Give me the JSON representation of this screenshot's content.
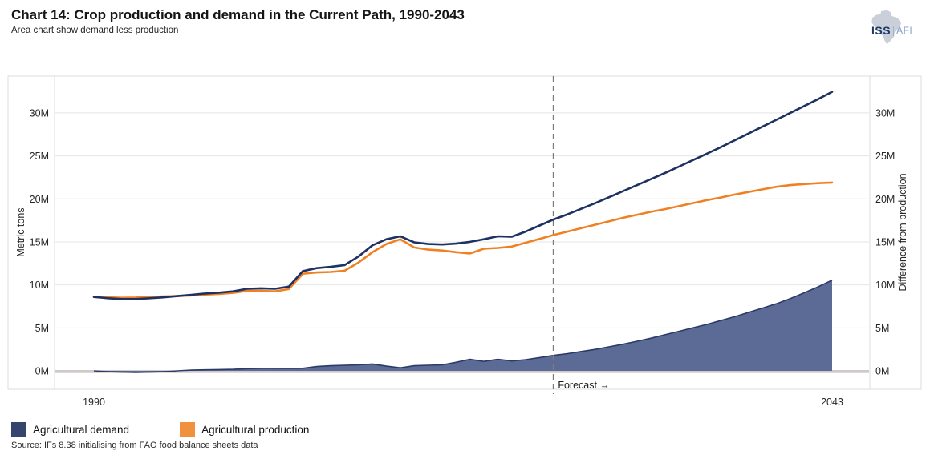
{
  "header": {
    "title": "Chart 14: Crop production and demand in the Current Path, 1990-2043",
    "subtitle": "Area chart show demand less production"
  },
  "logo": {
    "iss": "ISS",
    "afi": "AFI"
  },
  "chart_data": {
    "type": "line",
    "subtype": "dual-axis line chart with difference area",
    "x": [
      1990,
      1991,
      1992,
      1993,
      1994,
      1995,
      1996,
      1997,
      1998,
      1999,
      2000,
      2001,
      2002,
      2003,
      2004,
      2005,
      2006,
      2007,
      2008,
      2009,
      2010,
      2011,
      2012,
      2013,
      2014,
      2015,
      2016,
      2017,
      2018,
      2019,
      2020,
      2021,
      2022,
      2023,
      2024,
      2025,
      2026,
      2027,
      2028,
      2029,
      2030,
      2031,
      2032,
      2033,
      2034,
      2035,
      2036,
      2037,
      2038,
      2039,
      2040,
      2041,
      2042,
      2043
    ],
    "unit": "metric tons (millions)",
    "series": [
      {
        "name": "Agricultural demand",
        "color": "#1e3163",
        "values": [
          8.6,
          8.45,
          8.35,
          8.35,
          8.45,
          8.55,
          8.7,
          8.85,
          9.0,
          9.1,
          9.25,
          9.55,
          9.6,
          9.55,
          9.8,
          11.6,
          11.95,
          12.1,
          12.3,
          13.3,
          14.6,
          15.3,
          15.65,
          14.95,
          14.75,
          14.7,
          14.8,
          15.0,
          15.3,
          15.65,
          15.6,
          16.2,
          16.9,
          17.6,
          18.2,
          18.85,
          19.5,
          20.2,
          20.9,
          21.6,
          22.3,
          23.0,
          23.75,
          24.5,
          25.25,
          26.0,
          26.8,
          27.6,
          28.4,
          29.2,
          30.0,
          30.8,
          31.6,
          32.45
        ]
      },
      {
        "name": "Agricultural production",
        "color": "#f08122",
        "values": [
          8.6,
          8.55,
          8.5,
          8.53,
          8.6,
          8.65,
          8.7,
          8.77,
          8.88,
          8.95,
          9.07,
          9.3,
          9.3,
          9.25,
          9.52,
          11.3,
          11.45,
          11.5,
          11.65,
          12.6,
          13.8,
          14.75,
          15.3,
          14.35,
          14.1,
          14.0,
          13.8,
          13.65,
          14.2,
          14.3,
          14.45,
          14.9,
          15.35,
          15.8,
          16.2,
          16.6,
          17.0,
          17.4,
          17.8,
          18.15,
          18.5,
          18.8,
          19.15,
          19.5,
          19.85,
          20.15,
          20.5,
          20.8,
          21.1,
          21.4,
          21.6,
          21.72,
          21.82,
          21.9
        ]
      },
      {
        "name": "Demand less production (area)",
        "color": "#5c6b95",
        "stroke": "#2b3a67",
        "values": [
          0.0,
          -0.1,
          -0.15,
          -0.18,
          -0.15,
          -0.1,
          0.0,
          0.08,
          0.12,
          0.15,
          0.18,
          0.25,
          0.3,
          0.3,
          0.28,
          0.3,
          0.5,
          0.6,
          0.65,
          0.7,
          0.8,
          0.55,
          0.35,
          0.6,
          0.65,
          0.7,
          1.0,
          1.35,
          1.1,
          1.35,
          1.15,
          1.3,
          1.55,
          1.8,
          2.0,
          2.25,
          2.5,
          2.8,
          3.1,
          3.45,
          3.8,
          4.2,
          4.6,
          5.0,
          5.4,
          5.85,
          6.3,
          6.8,
          7.3,
          7.8,
          8.4,
          9.08,
          9.78,
          10.55
        ]
      }
    ],
    "ylabel_left": "Metric tons",
    "ylabel_right": "Difference from production",
    "yticks": [
      "0M",
      "5M",
      "10M",
      "15M",
      "20M",
      "25M",
      "30M"
    ],
    "ytick_values": [
      0,
      5,
      10,
      15,
      20,
      25,
      30
    ],
    "ylim": [
      -2.5,
      34.3
    ],
    "xlim": [
      1990,
      2043
    ],
    "xticks": [
      "1990",
      "2043"
    ],
    "grid": true,
    "forecast": {
      "year": 2023,
      "label": "Forecast →"
    },
    "zero_line_color": "#979797",
    "baseline_accent_color": "#9a5f48",
    "gridline_color": "#e4e4e4",
    "frame_color": "#dcdcdc",
    "forecast_line_color": "#7b7b7b"
  },
  "legend": [
    {
      "label": "Agricultural demand",
      "color": "#35456e"
    },
    {
      "label": "Agricultural production",
      "color": "#f1913e"
    }
  ],
  "source": {
    "text": "Source: IFs 8.38 initialising from FAO food balance sheets data"
  }
}
